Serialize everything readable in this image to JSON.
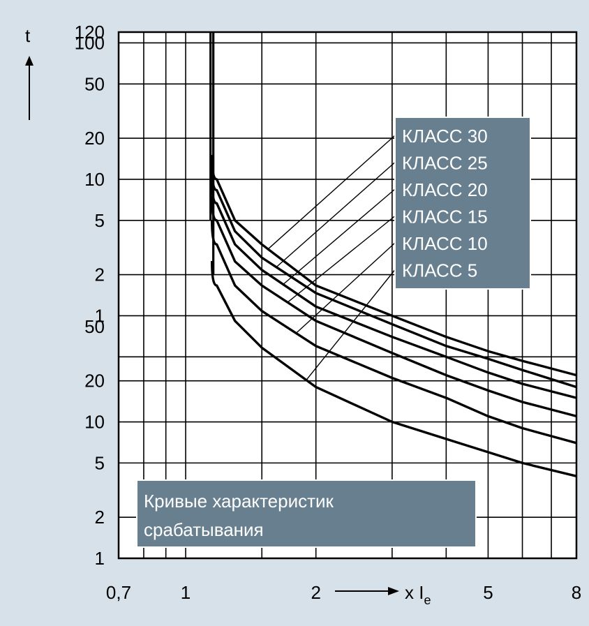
{
  "chart_data": {
    "type": "line",
    "title": "Кривые характеристик срабатывания",
    "title_lines": [
      "Кривые характеристик",
      "срабатывания"
    ],
    "ylabel": "t",
    "xlabel_prefix": "x I",
    "xlabel_subscript": "e",
    "x_scale": "log",
    "y_scale": "log",
    "xlim": [
      0.7,
      8
    ],
    "x_ticks": [
      {
        "value": 0.7,
        "label": "0,7"
      },
      {
        "value": 1,
        "label": "1"
      },
      {
        "value": 2,
        "label": "2"
      },
      {
        "value": 5,
        "label": "5"
      },
      {
        "value": 8,
        "label": "8"
      }
    ],
    "y_ticks_minutes": [
      {
        "value": 120,
        "label": "120"
      },
      {
        "value": 100,
        "label": "100"
      },
      {
        "value": 50,
        "label": "50"
      },
      {
        "value": 20,
        "label": "20"
      },
      {
        "value": 10,
        "label": "10"
      },
      {
        "value": 5,
        "label": "5"
      },
      {
        "value": 2,
        "label": "2"
      },
      {
        "value": 1,
        "label": "1"
      }
    ],
    "y_ticks_seconds": [
      {
        "value": 50,
        "label": "50"
      },
      {
        "value": 20,
        "label": "20"
      },
      {
        "value": 10,
        "label": "10"
      },
      {
        "value": 5,
        "label": "5"
      },
      {
        "value": 2,
        "label": "2"
      },
      {
        "value": 1,
        "label": "1"
      }
    ],
    "grid": true,
    "legend_position": "top-right",
    "vertical_asymptote_x": 1.15,
    "series": [
      {
        "name": "КЛАСС 30",
        "x": [
          1.18,
          1.3,
          1.5,
          2,
          3,
          4,
          5,
          6,
          8
        ],
        "y_seconds": [
          600,
          300,
          200,
          100,
          60,
          42,
          33,
          28,
          22
        ]
      },
      {
        "name": "КЛАСС 25",
        "x": [
          1.18,
          1.3,
          1.5,
          2,
          3,
          4,
          5,
          6,
          8
        ],
        "y_seconds": [
          500,
          250,
          160,
          88,
          52,
          36,
          29,
          24,
          18
        ]
      },
      {
        "name": "КЛАСС 20",
        "x": [
          1.18,
          1.3,
          1.5,
          2,
          3,
          4,
          5,
          6,
          8
        ],
        "y_seconds": [
          400,
          200,
          130,
          70,
          42,
          30,
          23,
          19,
          15
        ]
      },
      {
        "name": "КЛАСС 15",
        "x": [
          1.18,
          1.3,
          1.5,
          2,
          3,
          4,
          5,
          6,
          8
        ],
        "y_seconds": [
          300,
          150,
          100,
          55,
          32,
          22,
          17,
          14,
          11
        ]
      },
      {
        "name": "КЛАСС 10",
        "x": [
          1.18,
          1.3,
          1.5,
          2,
          3,
          4,
          5,
          6,
          8
        ],
        "y_seconds": [
          200,
          100,
          65,
          36,
          21,
          15,
          11,
          9,
          7
        ]
      },
      {
        "name": "КЛАСС   5",
        "x": [
          1.18,
          1.3,
          1.5,
          2,
          3,
          4,
          5,
          6,
          8
        ],
        "y_seconds": [
          100,
          55,
          35,
          18,
          10,
          7.5,
          6,
          5,
          4
        ]
      }
    ],
    "colors": {
      "background": "#d7e1e9",
      "plot_area": "#ffffff",
      "label_box": "#677f8f",
      "line": "#000000"
    }
  }
}
